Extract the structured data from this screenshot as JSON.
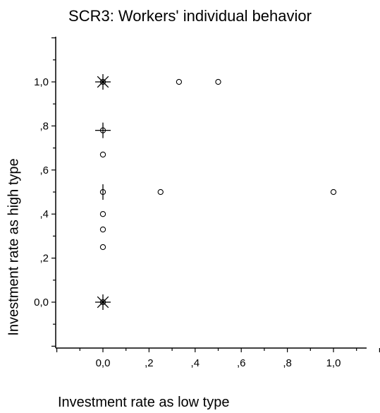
{
  "chart_data": {
    "type": "scatter",
    "title": "SCR3:  Workers' individual behavior",
    "xlabel": "Investment rate as low type",
    "ylabel": "Investment rate as high type",
    "xlim": [
      -0.2,
      1.2
    ],
    "ylim": [
      -0.2,
      1.2
    ],
    "xticks": [
      {
        "value": 0.0,
        "label": "0,0"
      },
      {
        "value": 0.2,
        "label": ",2"
      },
      {
        "value": 0.4,
        "label": ",4"
      },
      {
        "value": 0.6,
        "label": ",6"
      },
      {
        "value": 0.8,
        "label": ",8"
      },
      {
        "value": 1.0,
        "label": "1,0"
      }
    ],
    "yticks": [
      {
        "value": 0.0,
        "label": "0,0"
      },
      {
        "value": 0.2,
        "label": ",2"
      },
      {
        "value": 0.4,
        "label": ",4"
      },
      {
        "value": 0.6,
        "label": ",6"
      },
      {
        "value": 0.8,
        "label": ",8"
      },
      {
        "value": 1.0,
        "label": "1,0"
      }
    ],
    "grid": false,
    "points": [
      {
        "x": 0.0,
        "y": 1.0,
        "count": 8
      },
      {
        "x": 0.33,
        "y": 1.0,
        "count": 1
      },
      {
        "x": 0.5,
        "y": 1.0,
        "count": 1
      },
      {
        "x": 0.0,
        "y": 0.78,
        "count": 4
      },
      {
        "x": 0.0,
        "y": 0.67,
        "count": 1
      },
      {
        "x": 0.0,
        "y": 0.5,
        "count": 2
      },
      {
        "x": 0.25,
        "y": 0.5,
        "count": 1
      },
      {
        "x": 1.0,
        "y": 0.5,
        "count": 1
      },
      {
        "x": 0.0,
        "y": 0.4,
        "count": 1
      },
      {
        "x": 0.0,
        "y": 0.33,
        "count": 1
      },
      {
        "x": 0.0,
        "y": 0.25,
        "count": 1
      },
      {
        "x": 0.0,
        "y": 0.0,
        "count": 8
      }
    ]
  }
}
